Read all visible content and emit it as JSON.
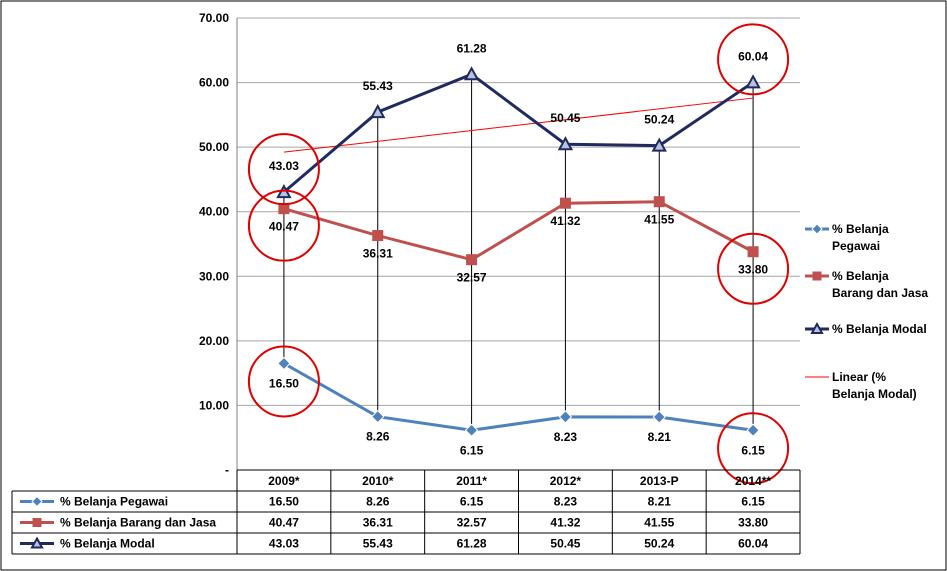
{
  "chart_data": {
    "type": "line",
    "categories": [
      "2009*",
      "2010*",
      "2011*",
      "2012*",
      "2013-P",
      "2014**"
    ],
    "ylim": [
      0,
      70
    ],
    "yticks": [
      "-",
      "10.00",
      "20.00",
      "30.00",
      "40.00",
      "50.00",
      "60.00",
      "70.00"
    ],
    "grid": true,
    "legend_position": "right",
    "series": [
      {
        "name": "% Belanja Pegawai",
        "legend_label": [
          "% Belanja",
          "Pegawai"
        ],
        "color": "#4f81bd",
        "marker": "diamond",
        "values": [
          16.5,
          8.26,
          6.15,
          8.23,
          8.21,
          6.15
        ],
        "labels": [
          "16.50",
          "8.26",
          "6.15",
          "8.23",
          "8.21",
          "6.15"
        ]
      },
      {
        "name": "% Belanja Barang dan Jasa",
        "legend_label": [
          "% Belanja",
          "Barang dan Jasa"
        ],
        "color": "#c0504d",
        "marker": "square",
        "values": [
          40.47,
          36.31,
          32.57,
          41.32,
          41.55,
          33.8
        ],
        "labels": [
          "40.47",
          "36.31",
          "32.57",
          "41.32",
          "41.55",
          "33.80"
        ]
      },
      {
        "name": "% Belanja Modal",
        "legend_label": [
          "% Belanja Modal"
        ],
        "color": "#1f2a5e",
        "marker": "triangle",
        "values": [
          43.03,
          55.43,
          61.28,
          50.45,
          50.24,
          60.04
        ],
        "labels": [
          "43.03",
          "55.43",
          "61.28",
          "50.45",
          "50.24",
          "60.04"
        ]
      }
    ],
    "trendline": {
      "name": "Linear (% Belanja Modal)",
      "legend_label": [
        "Linear (%",
        "Belanja Modal)"
      ],
      "color": "#ff0000",
      "of_series": "% Belanja Modal"
    },
    "highlight_color": "#e00000"
  }
}
